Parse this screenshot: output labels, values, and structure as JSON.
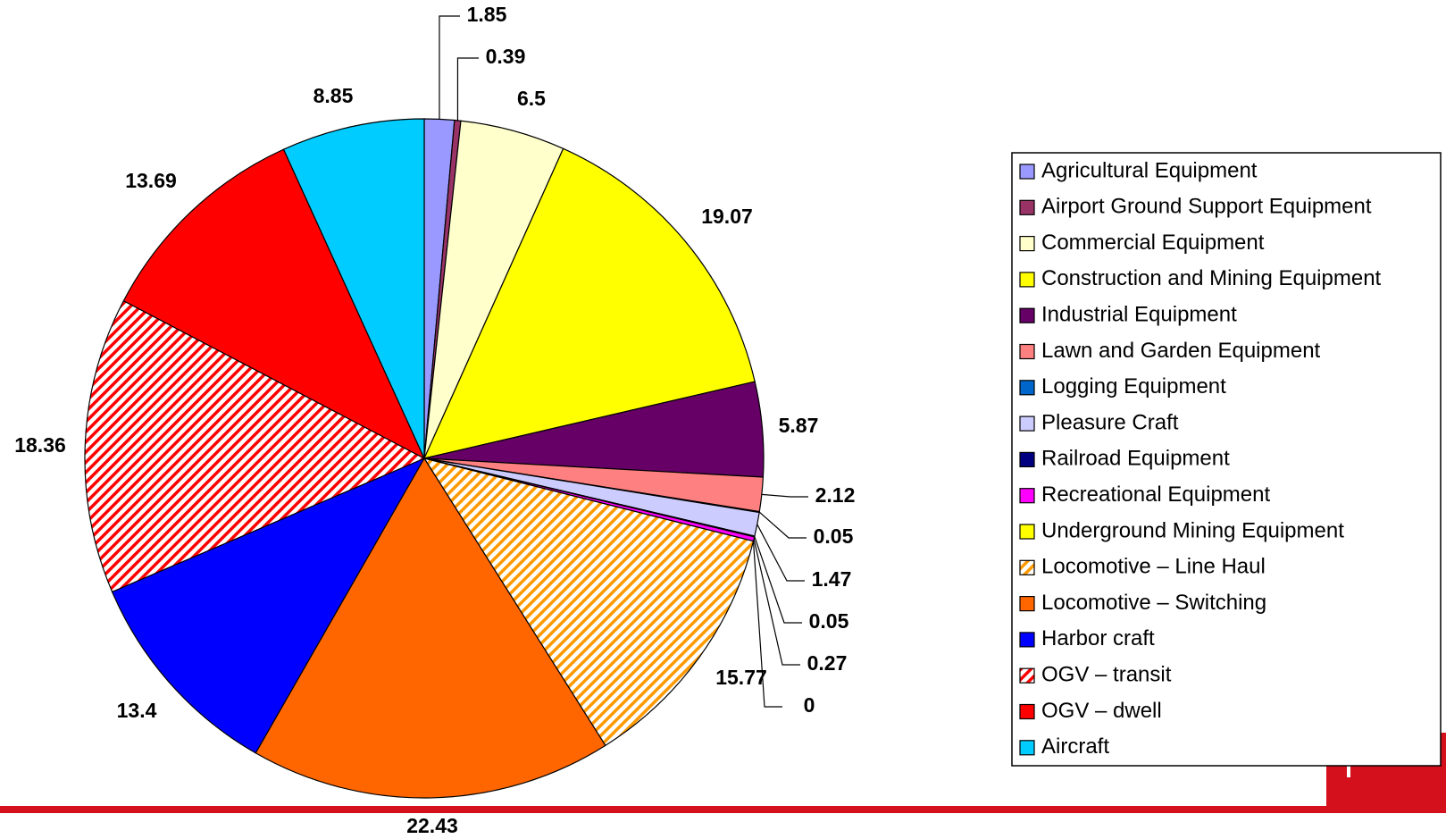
{
  "chart_data": {
    "type": "pie",
    "categories": [
      "Agricultural Equipment",
      "Airport Ground Support Equipment",
      "Commercial Equipment",
      "Construction and Mining Equipment",
      "Industrial Equipment",
      "Lawn and Garden Equipment",
      "Logging Equipment",
      "Pleasure Craft",
      "Railroad Equipment",
      "Recreational Equipment",
      "Underground Mining Equipment",
      "Locomotive – Line Haul",
      "Locomotive – Switching",
      "Harbor craft",
      "OGV – transit",
      "OGV – dwell",
      "Aircraft"
    ],
    "values": [
      1.85,
      0.39,
      6.5,
      19.07,
      5.87,
      2.12,
      0.05,
      1.47,
      0.05,
      0.27,
      0,
      15.77,
      22.43,
      13.4,
      18.36,
      13.69,
      8.85
    ],
    "colors": [
      "#9999ff",
      "#993366",
      "#ffffcc",
      "#ffff00",
      "#660066",
      "#ff8080",
      "#0066cc",
      "#ccccff",
      "#000080",
      "#ff00ff",
      "#ffff00",
      "#ff9900",
      "#ff6600",
      "#0000ff",
      "#ff0000",
      "#ff0000",
      "#00ccff"
    ],
    "patterns": [
      "solid",
      "solid",
      "solid",
      "solid",
      "solid",
      "solid",
      "solid",
      "solid",
      "solid",
      "solid",
      "solid",
      "hatch",
      "solid",
      "solid",
      "hatch",
      "solid",
      "solid"
    ],
    "legend": "right"
  }
}
